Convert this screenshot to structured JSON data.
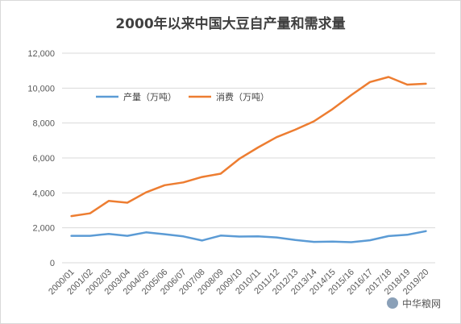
{
  "chart_data": {
    "type": "line",
    "title": "2000年以来中国大豆自产量和需求量",
    "categories": [
      "2000/01",
      "2001/02",
      "2002/03",
      "2003/04",
      "2004/05",
      "2005/06",
      "2006/07",
      "2007/08",
      "2008/09",
      "2009/10",
      "2010/11",
      "2011/12",
      "2012/13",
      "2013/14",
      "2014/15",
      "2015/16",
      "2016/17",
      "2017/18",
      "2018/19",
      "2019/20"
    ],
    "series": [
      {
        "name": "产量（万吨）",
        "color": "#5b9bd5",
        "values": [
          1541,
          1541,
          1651,
          1540,
          1740,
          1635,
          1508,
          1273,
          1554,
          1498,
          1508,
          1448,
          1305,
          1195,
          1215,
          1179,
          1290,
          1528,
          1600,
          1810
        ]
      },
      {
        "name": "消费（万吨）",
        "color": "#ed7d31",
        "values": [
          2670,
          2830,
          3540,
          3440,
          4030,
          4440,
          4600,
          4910,
          5100,
          5950,
          6600,
          7190,
          7620,
          8100,
          8800,
          9600,
          10350,
          10640,
          10200,
          10250
        ]
      }
    ],
    "yticks": [
      "0",
      "2,000",
      "4,000",
      "6,000",
      "8,000",
      "10,000",
      "12,000"
    ],
    "ylim": [
      0,
      12000
    ],
    "grid": true,
    "legend_position": "top-left"
  },
  "watermark": "中华粮网"
}
